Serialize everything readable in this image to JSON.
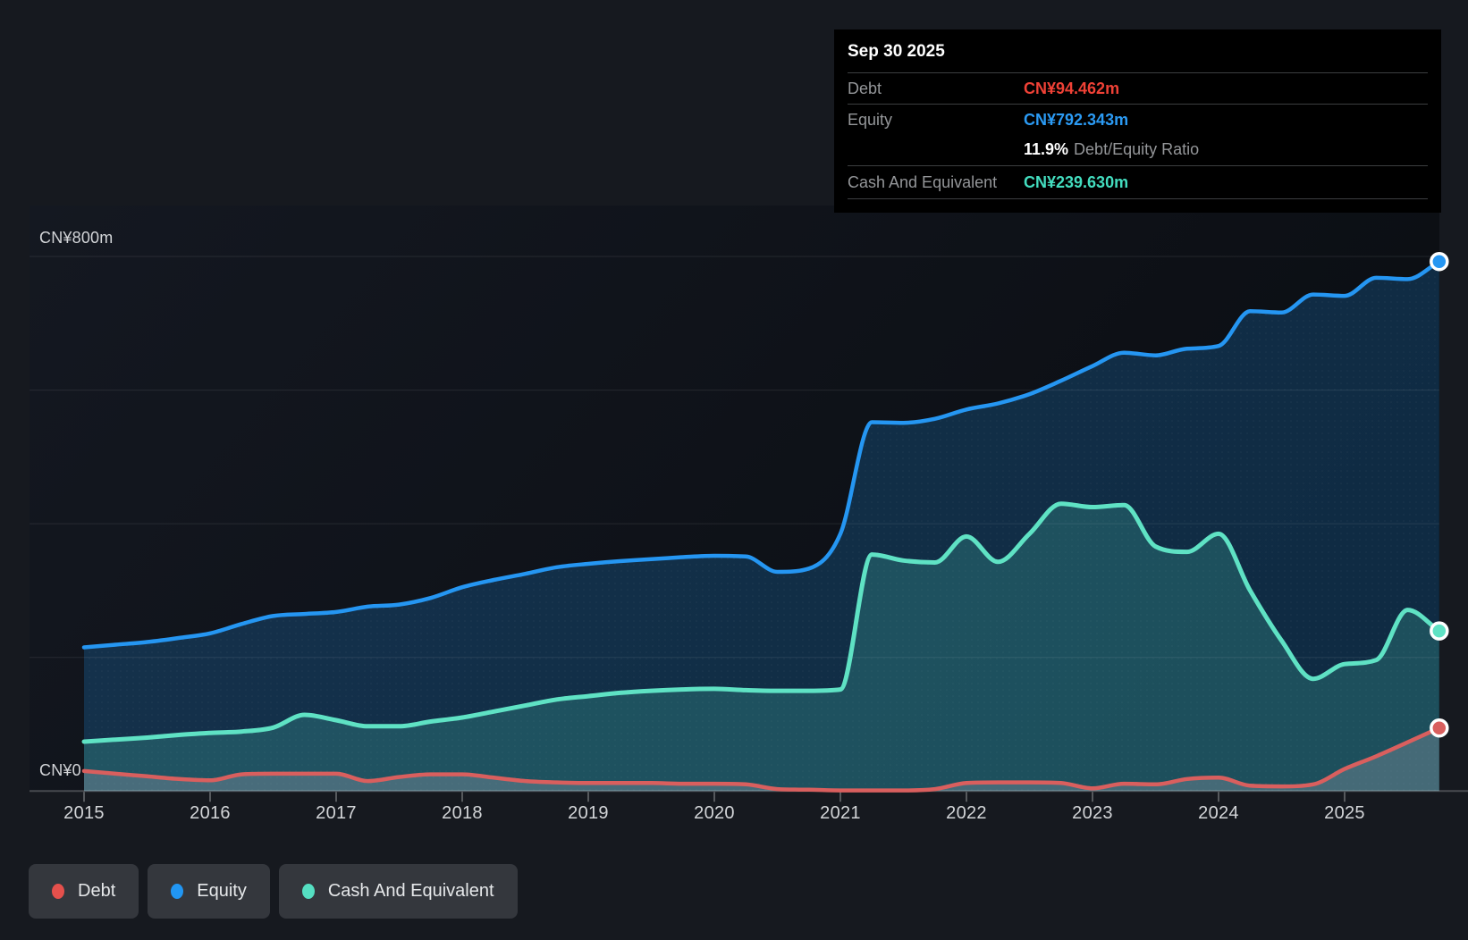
{
  "tooltip": {
    "date": "Sep 30 2025",
    "debt_label": "Debt",
    "debt_value": "CN¥94.462m",
    "equity_label": "Equity",
    "equity_value": "CN¥792.343m",
    "ratio_value": "11.9%",
    "ratio_label": "Debt/Equity Ratio",
    "cash_label": "Cash And Equivalent",
    "cash_value": "CN¥239.630m"
  },
  "axis": {
    "y_top_label": "CN¥800m",
    "y_zero_label": "CN¥0",
    "years": [
      "2015",
      "2016",
      "2017",
      "2018",
      "2019",
      "2020",
      "2021",
      "2022",
      "2023",
      "2024",
      "2025"
    ]
  },
  "legend": {
    "items": [
      {
        "label": "Debt",
        "color": "#e5504c"
      },
      {
        "label": "Equity",
        "color": "#2196f3"
      },
      {
        "label": "Cash And Equivalent",
        "color": "#55dfc2"
      }
    ]
  },
  "colors": {
    "debt_line": "#d95f5e",
    "equity_line": "#2596f2",
    "cash_line": "#5fe2c4",
    "debt_value_text": "#ef4136",
    "equity_value_text": "#2b9af3",
    "cash_value_text": "#43ddbf",
    "grid": "rgba(255,255,255,0.09)",
    "axis_line": "rgba(255,255,255,0.22)"
  },
  "chart_data": {
    "type": "area",
    "title": "",
    "xlabel": "",
    "ylabel": "CN¥ (millions)",
    "x_years": [
      2015,
      2015.25,
      2015.5,
      2015.75,
      2016,
      2016.25,
      2016.5,
      2016.75,
      2017,
      2017.25,
      2017.5,
      2017.75,
      2018,
      2018.25,
      2018.5,
      2018.75,
      2019,
      2019.25,
      2019.5,
      2019.75,
      2020,
      2020.25,
      2020.5,
      2020.75,
      2021,
      2021.25,
      2021.5,
      2021.75,
      2022,
      2022.25,
      2022.5,
      2022.75,
      2023,
      2023.25,
      2023.5,
      2023.75,
      2024,
      2024.25,
      2024.5,
      2024.75,
      2025,
      2025.25,
      2025.5,
      2025.75
    ],
    "series": [
      {
        "name": "Equity",
        "color": "#2596f2",
        "last_label": "CN¥792.343m",
        "values": [
          215,
          219,
          223,
          229,
          236,
          250,
          262,
          265,
          268,
          276,
          279,
          289,
          305,
          316,
          325,
          335,
          340,
          344,
          347,
          350,
          352,
          351,
          328,
          333,
          385,
          552,
          551,
          557,
          571,
          580,
          594,
          614,
          636,
          656,
          652,
          662,
          666,
          718,
          716,
          743,
          741,
          768,
          766,
          792.343
        ]
      },
      {
        "name": "Cash And Equivalent",
        "color": "#5fe2c4",
        "last_label": "CN¥239.630m",
        "values": [
          74,
          77,
          80,
          84,
          87,
          89,
          95,
          114,
          106,
          97,
          97,
          104,
          110,
          119,
          128,
          137,
          142,
          147,
          150,
          152,
          153,
          151,
          150,
          150,
          152,
          354,
          345,
          342,
          381,
          343,
          385,
          430,
          425,
          428,
          366,
          358,
          385,
          300,
          225,
          168,
          190,
          196,
          271,
          239.63
        ]
      },
      {
        "name": "Debt",
        "color": "#d95f5e",
        "last_label": "CN¥94.462m",
        "values": [
          30,
          26,
          22,
          18,
          16,
          25,
          26,
          26,
          26,
          15,
          21,
          25,
          25,
          20,
          15,
          13,
          12,
          12,
          12,
          11,
          11,
          10,
          3,
          2,
          1,
          1,
          1,
          3,
          12,
          13,
          13,
          12,
          4,
          11,
          10,
          18,
          20,
          8,
          7,
          10,
          33,
          52,
          73,
          94.462
        ]
      }
    ],
    "ylim": [
      0,
      800
    ],
    "yticks": [
      {
        "value": 800,
        "label": "CN¥800m"
      },
      {
        "value": 0,
        "label": "CN¥0"
      }
    ],
    "grid_values": [
      800,
      600,
      400,
      200
    ],
    "xticks": [
      2015,
      2016,
      2017,
      2018,
      2019,
      2020,
      2021,
      2022,
      2023,
      2024,
      2025
    ],
    "legend_position": "bottom",
    "grid": true,
    "last_point_date": "Sep 30 2025"
  }
}
